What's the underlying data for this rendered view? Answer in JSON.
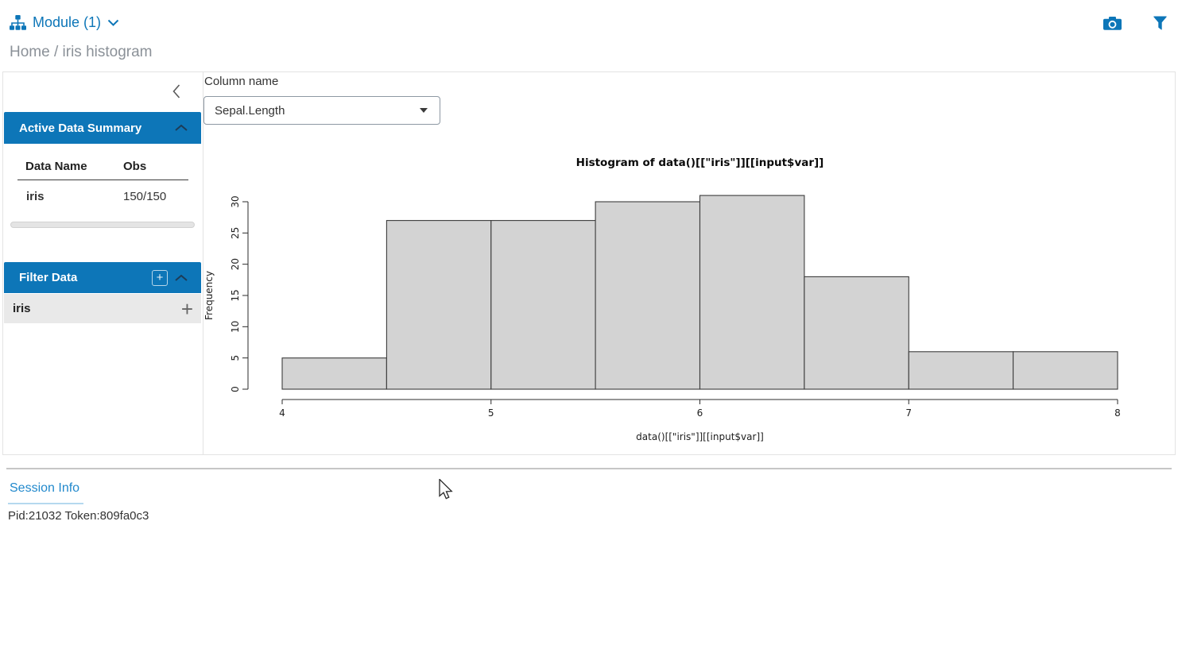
{
  "colors": {
    "accent": "#0d76b8",
    "link": "#2289cc",
    "bar_fill": "#d3d3d3",
    "bar_stroke": "#3c3c3c"
  },
  "topbar": {
    "module_label": "Module (1)",
    "icons": [
      "sitemap-icon",
      "chevron-down-icon",
      "camera-icon",
      "filter-icon"
    ]
  },
  "breadcrumb": "Home / iris histogram",
  "sidebar": {
    "collapse_icon": "chevron-left-icon",
    "summary": {
      "title": "Active Data Summary",
      "table": {
        "headers": [
          "Data Name",
          "Obs"
        ],
        "rows": [
          {
            "name": "iris",
            "obs": "150/150"
          }
        ]
      }
    },
    "filter": {
      "title": "Filter Data",
      "add_label": "+",
      "items": [
        {
          "label": "iris",
          "add_label": "+"
        }
      ]
    }
  },
  "main": {
    "column_label": "Column name",
    "select_value": "Sepal.Length"
  },
  "chart_data": {
    "type": "bar",
    "title": "Histogram of data()[[\"iris\"]][[input$var]]",
    "xlabel": "data()[[\"iris\"]][[input$var]]",
    "ylabel": "Frequency",
    "bin_start": 4,
    "bin_width": 0.5,
    "values": [
      5,
      27,
      27,
      30,
      31,
      18,
      6,
      6
    ],
    "x_ticks": [
      4,
      5,
      6,
      7,
      8
    ],
    "y_ticks": [
      0,
      5,
      10,
      15,
      20,
      25,
      30
    ],
    "xlim": [
      4,
      8
    ],
    "ylim": [
      0,
      31
    ],
    "grid": false,
    "legend": null
  },
  "footer": {
    "tab_label": "Session Info",
    "session_text": "Pid:21032 Token:809fa0c3"
  }
}
